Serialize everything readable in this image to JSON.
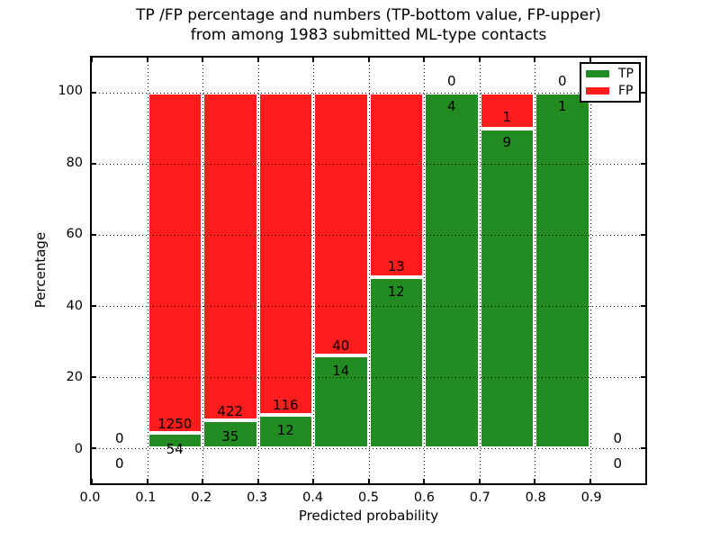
{
  "figure": {
    "title_line1": "TP /FP percentage and numbers (TP-bottom value, FP-upper)",
    "title_line2": "from among 1983 submitted ML-type contacts",
    "xlabel": "Predicted probability",
    "ylabel": "Percentage"
  },
  "legend": {
    "items": [
      {
        "label": "TP",
        "color": "#228b22"
      },
      {
        "label": "FP",
        "color": "#ff1c1c"
      }
    ]
  },
  "colors": {
    "tp": "#228b22",
    "fp": "#ff1c1c",
    "grid": "#000000",
    "background": "#ffffff"
  },
  "chart_data": {
    "type": "bar",
    "stacked": true,
    "title": "TP /FP percentage and numbers (TP-bottom value, FP-upper)\nfrom among 1983 submitted ML-type contacts",
    "xlabel": "Predicted probability",
    "ylabel": "Percentage",
    "total_contacts": 1983,
    "xlim": [
      0.0,
      1.0
    ],
    "ylim": [
      -10,
      110
    ],
    "xticks": [
      0.0,
      0.1,
      0.2,
      0.3,
      0.4,
      0.5,
      0.6,
      0.7,
      0.8,
      0.9
    ],
    "xtick_labels": [
      "0.0",
      "0.1",
      "0.2",
      "0.3",
      "0.4",
      "0.5",
      "0.6",
      "0.7",
      "0.8",
      "0.9"
    ],
    "yticks": [
      0,
      20,
      40,
      60,
      80,
      100
    ],
    "ytick_labels": [
      "0",
      "20",
      "40",
      "60",
      "80",
      "100"
    ],
    "grid": true,
    "legend_position": "upper right",
    "categories": [
      "0.0-0.1",
      "0.1-0.2",
      "0.2-0.3",
      "0.3-0.4",
      "0.4-0.5",
      "0.5-0.6",
      "0.6-0.7",
      "0.7-0.8",
      "0.8-0.9",
      "0.9-1.0"
    ],
    "series": [
      {
        "name": "TP",
        "color": "#228b22",
        "values_pct": [
          0,
          4.14,
          7.66,
          9.38,
          25.93,
          48.0,
          100.0,
          90.0,
          100.0,
          0
        ],
        "counts": [
          0,
          54,
          35,
          12,
          14,
          12,
          4,
          9,
          1,
          0
        ]
      },
      {
        "name": "FP",
        "color": "#ff1c1c",
        "values_pct": [
          0,
          95.86,
          92.34,
          90.62,
          74.07,
          52.0,
          0.0,
          10.0,
          0.0,
          0
        ],
        "counts": [
          0,
          1250,
          422,
          116,
          40,
          13,
          0,
          1,
          0,
          0
        ]
      }
    ],
    "bins": [
      {
        "x_start": 0.0,
        "x_end": 0.1,
        "tp": 0,
        "fp": 0,
        "tp_pct": null
      },
      {
        "x_start": 0.1,
        "x_end": 0.2,
        "tp": 54,
        "fp": 1250,
        "tp_pct": 4.14
      },
      {
        "x_start": 0.2,
        "x_end": 0.3,
        "tp": 35,
        "fp": 422,
        "tp_pct": 7.66
      },
      {
        "x_start": 0.3,
        "x_end": 0.4,
        "tp": 12,
        "fp": 116,
        "tp_pct": 9.38
      },
      {
        "x_start": 0.4,
        "x_end": 0.5,
        "tp": 14,
        "fp": 40,
        "tp_pct": 25.93
      },
      {
        "x_start": 0.5,
        "x_end": 0.6,
        "tp": 12,
        "fp": 13,
        "tp_pct": 48.0
      },
      {
        "x_start": 0.6,
        "x_end": 0.7,
        "tp": 4,
        "fp": 0,
        "tp_pct": 100.0
      },
      {
        "x_start": 0.7,
        "x_end": 0.8,
        "tp": 9,
        "fp": 1,
        "tp_pct": 90.0
      },
      {
        "x_start": 0.8,
        "x_end": 0.9,
        "tp": 1,
        "fp": 0,
        "tp_pct": 100.0
      },
      {
        "x_start": 0.9,
        "x_end": 1.0,
        "tp": 0,
        "fp": 0,
        "tp_pct": null
      }
    ]
  }
}
